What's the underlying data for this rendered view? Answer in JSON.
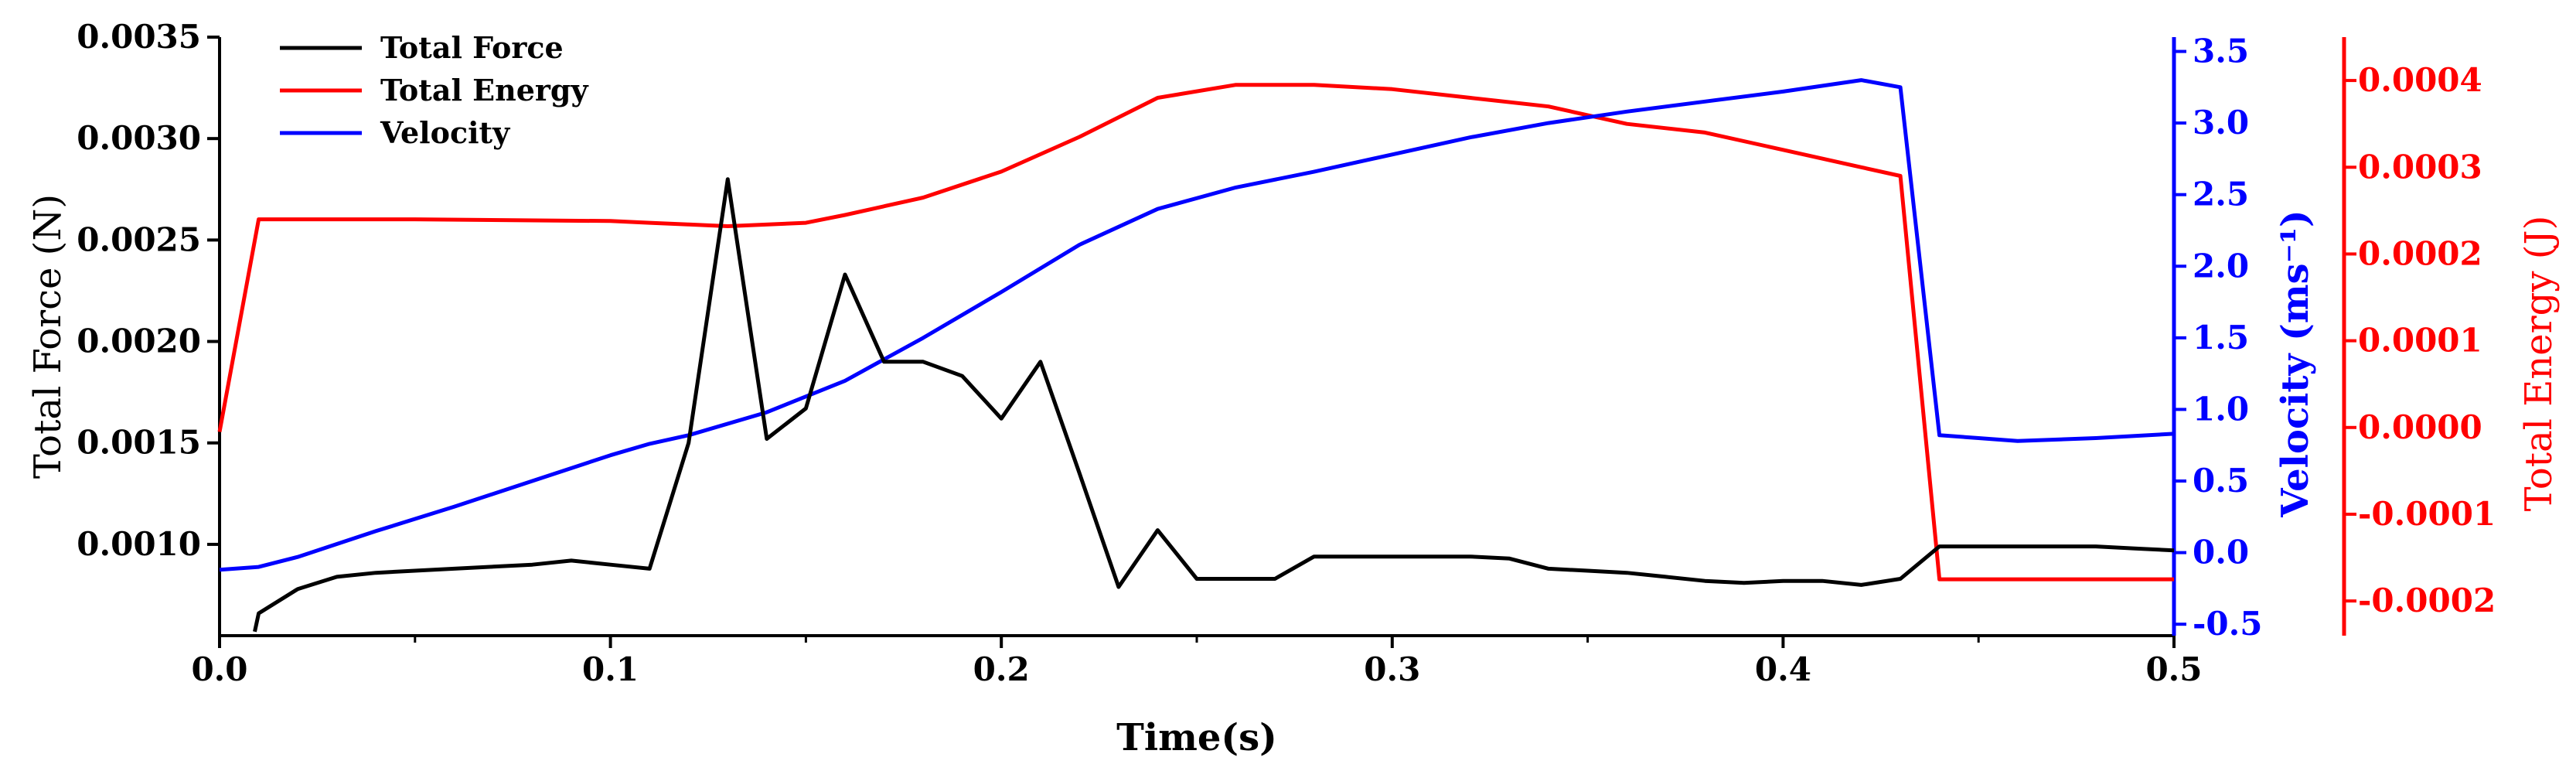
{
  "chart_data": {
    "type": "line",
    "xlabel": "Time(s)",
    "ylabel": "Total Force (N)",
    "y2label": "Velocity (ms⁻¹)",
    "y3label": "Total Energy (J)",
    "xlim": [
      0,
      0.5
    ],
    "ylim": [
      0.00055,
      0.0035
    ],
    "y2lim": [
      -0.58,
      3.6
    ],
    "y3lim": [
      -0.00024,
      0.00045
    ],
    "grid": false,
    "legend_position": "top-left",
    "x_ticks": [
      "0.0",
      "0.1",
      "0.2",
      "0.3",
      "0.4",
      "0.5"
    ],
    "y_ticks": [
      "0.0010",
      "0.0015",
      "0.0020",
      "0.0025",
      "0.0030",
      "0.0035"
    ],
    "y2_ticks": [
      "-0.5",
      "0.0",
      "0.5",
      "1.0",
      "1.5",
      "2.0",
      "2.5",
      "3.0",
      "3.5"
    ],
    "y3_ticks": [
      "-0.0002",
      "-0.0001",
      "0.0000",
      "0.0001",
      "0.0002",
      "0.0003",
      "0.0004"
    ],
    "series": [
      {
        "name": "Total Force",
        "axis": "left",
        "color": "#000000",
        "x": [
          0.009,
          0.01,
          0.02,
          0.03,
          0.04,
          0.05,
          0.06,
          0.07,
          0.08,
          0.09,
          0.1,
          0.11,
          0.12,
          0.13,
          0.14,
          0.15,
          0.16,
          0.17,
          0.18,
          0.19,
          0.2,
          0.21,
          0.22,
          0.23,
          0.24,
          0.25,
          0.26,
          0.27,
          0.28,
          0.29,
          0.3,
          0.31,
          0.32,
          0.33,
          0.34,
          0.35,
          0.36,
          0.37,
          0.38,
          0.39,
          0.4,
          0.41,
          0.42,
          0.43,
          0.44,
          0.45,
          0.46,
          0.47,
          0.48,
          0.49,
          0.5
        ],
        "y": [
          0.00057,
          0.00066,
          0.00078,
          0.00084,
          0.00086,
          0.00087,
          0.00088,
          0.00089,
          0.0009,
          0.00092,
          0.0009,
          0.00088,
          0.0015,
          0.0028,
          0.00152,
          0.00167,
          0.00233,
          0.0019,
          0.0019,
          0.00183,
          0.00162,
          0.0019,
          0.00135,
          0.00079,
          0.00107,
          0.00083,
          0.00083,
          0.00083,
          0.00094,
          0.00094,
          0.00094,
          0.00094,
          0.00094,
          0.00093,
          0.00088,
          0.00087,
          0.00086,
          0.00084,
          0.00082,
          0.00081,
          0.00082,
          0.00082,
          0.0008,
          0.00083,
          0.00099,
          0.00099,
          0.00099,
          0.00099,
          0.00099,
          0.00098,
          0.00097
        ]
      },
      {
        "name": "Total Energy",
        "axis": "right2",
        "color": "#ff0000",
        "x": [
          0.0,
          0.01,
          0.05,
          0.1,
          0.11,
          0.12,
          0.13,
          0.15,
          0.16,
          0.18,
          0.2,
          0.22,
          0.24,
          0.26,
          0.28,
          0.3,
          0.32,
          0.34,
          0.36,
          0.38,
          0.4,
          0.42,
          0.43,
          0.44,
          0.45,
          0.5
        ],
        "y": [
          -5e-06,
          0.00024,
          0.00024,
          0.000238,
          0.000236,
          0.000234,
          0.000232,
          0.000236,
          0.000245,
          0.000265,
          0.000295,
          0.000335,
          0.00038,
          0.000395,
          0.000395,
          0.00039,
          0.00038,
          0.00037,
          0.00035,
          0.00034,
          0.00032,
          0.0003,
          0.00029,
          -0.000175,
          -0.000175,
          -0.000175
        ]
      },
      {
        "name": "Velocity",
        "axis": "right1",
        "color": "#0000ff",
        "x": [
          0.0,
          0.01,
          0.02,
          0.04,
          0.06,
          0.08,
          0.1,
          0.11,
          0.12,
          0.14,
          0.16,
          0.18,
          0.2,
          0.22,
          0.24,
          0.26,
          0.28,
          0.3,
          0.32,
          0.34,
          0.36,
          0.38,
          0.4,
          0.42,
          0.43,
          0.44,
          0.45,
          0.46,
          0.48,
          0.5
        ],
        "y": [
          -0.12,
          -0.1,
          -0.03,
          0.15,
          0.32,
          0.5,
          0.68,
          0.76,
          0.82,
          0.98,
          1.2,
          1.5,
          1.82,
          2.15,
          2.4,
          2.55,
          2.66,
          2.78,
          2.9,
          3.0,
          3.08,
          3.15,
          3.22,
          3.3,
          3.25,
          0.82,
          0.8,
          0.78,
          0.8,
          0.83
        ]
      }
    ]
  }
}
